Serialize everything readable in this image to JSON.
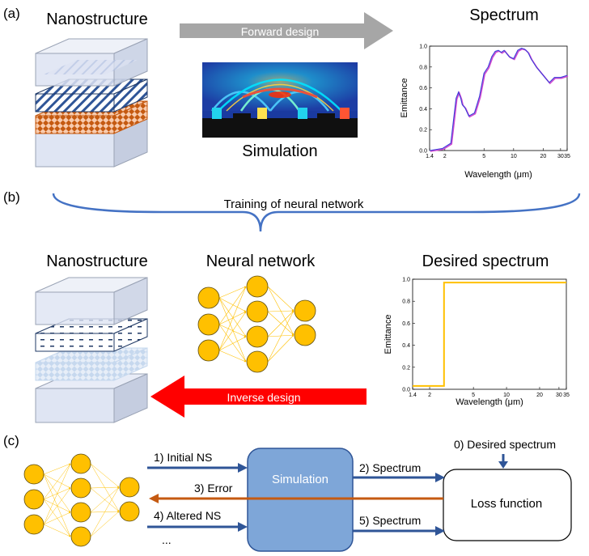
{
  "panel_labels": {
    "a": "(a)",
    "b": "(b)",
    "c": "(c)"
  },
  "panel_a": {
    "nanostructure_title": "Nanostructure",
    "forward_arrow_label": "Forward design",
    "simulation_label": "Simulation",
    "spectrum_title": "Spectrum"
  },
  "panel_b": {
    "training_label": "Training of neural network",
    "nanostructure_title": "Nanostructure",
    "nn_title": "Neural network",
    "desired_title": "Desired spectrum",
    "inverse_arrow_label": "Inverse design"
  },
  "panel_c": {
    "simulation_box": "Simulation",
    "loss_box": "Loss function",
    "desired_spectrum": "0) Desired spectrum",
    "initial_ns": "1) Initial NS",
    "spectrum_2": "2) Spectrum",
    "error": "3) Error",
    "altered_ns": "4) Altered NS",
    "spectrum_5": "5) Spectrum",
    "ellipsis": "..."
  },
  "colors": {
    "neuron_fill": "#ffc000",
    "forward_arrow": "#a6a6a6",
    "inverse_arrow": "#ff0000",
    "flow_arrow": "#2f5597",
    "error_arrow": "#c55a11",
    "simulation_box": "#7ea6d8",
    "brace": "#4472c4"
  },
  "chart_data": [
    {
      "type": "line",
      "title": "Spectrum",
      "xlabel": "Wavelength (μm)",
      "ylabel": "Emittance",
      "x_scale": "log",
      "xlim": [
        1.4,
        35
      ],
      "ylim": [
        0,
        1.0
      ],
      "xticks": [
        "1.4",
        "2",
        "5",
        "10",
        "20",
        "30",
        "35"
      ],
      "yticks": [
        "0.0",
        "0.2",
        "0.4",
        "0.6",
        "0.8",
        "1.0"
      ],
      "series": [
        {
          "x": [
            1.4,
            1.9,
            2.3,
            2.6,
            2.75,
            2.9,
            3.0,
            3.2,
            3.5,
            4.0,
            4.5,
            5.0,
            5.5,
            6.0,
            6.5,
            7.0,
            7.5,
            8.0,
            9.0,
            10.0,
            11.0,
            12.0,
            13.0,
            14.0,
            15.0,
            17.0,
            20.0,
            23.0,
            26.0,
            30.0,
            35.0
          ],
          "y": [
            0.0,
            0.02,
            0.07,
            0.5,
            0.56,
            0.5,
            0.44,
            0.41,
            0.33,
            0.36,
            0.52,
            0.74,
            0.8,
            0.9,
            0.95,
            0.96,
            0.94,
            0.96,
            0.9,
            0.88,
            0.96,
            0.98,
            0.97,
            0.94,
            0.88,
            0.8,
            0.72,
            0.65,
            0.7,
            0.7,
            0.72
          ]
        }
      ]
    },
    {
      "type": "line",
      "title": "Desired spectrum",
      "xlabel": "Wavelength (μm)",
      "ylabel": "Emittance",
      "x_scale": "log",
      "xlim": [
        1.4,
        35
      ],
      "ylim": [
        0,
        1.0
      ],
      "xticks": [
        "1.4",
        "2",
        "5",
        "10",
        "20",
        "30",
        "35"
      ],
      "yticks": [
        "0.0",
        "0.2",
        "0.4",
        "0.6",
        "0.8",
        "1.0"
      ],
      "series": [
        {
          "x": [
            1.4,
            2.7,
            2.7,
            35.0
          ],
          "y": [
            0.03,
            0.03,
            0.97,
            0.97
          ]
        }
      ]
    }
  ]
}
